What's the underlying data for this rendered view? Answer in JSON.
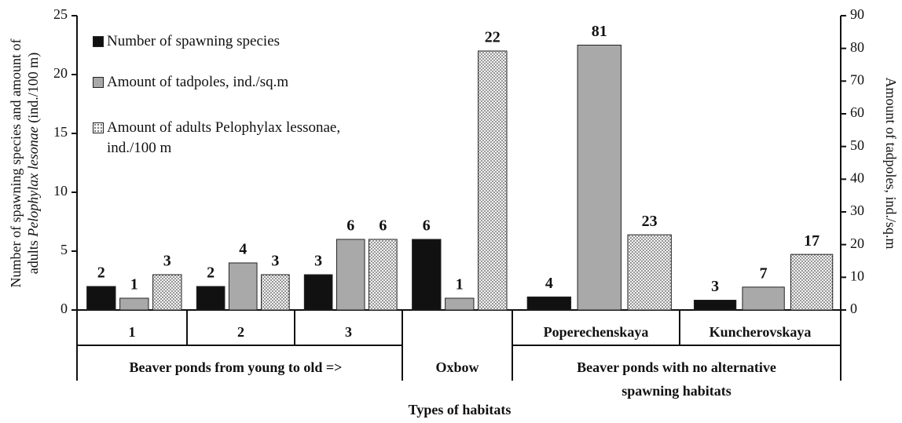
{
  "chart_data": {
    "type": "bar",
    "categories": [
      "1",
      "2",
      "3",
      null,
      "Poperechenskaya",
      "Kuncherovskaya"
    ],
    "category_axes": [
      "y",
      "y",
      "y",
      "y",
      "y2",
      "y2"
    ],
    "groups": [
      "Beaver ponds from young to old =>",
      "Oxbow",
      "Beaver ponds with no alternative spawning habitats"
    ],
    "series": [
      {
        "name": "Number of spawning species",
        "color": "#111111",
        "values": [
          2,
          2,
          3,
          6,
          4,
          3
        ]
      },
      {
        "name": "Amount of tadpoles, ind./sq.m",
        "color": "#a9a9a9",
        "values": [
          1,
          4,
          6,
          1,
          81,
          7
        ]
      },
      {
        "name": "Amount of adults Pelophylax lessonae, ind./100 m",
        "color": "#eeeeee",
        "pattern": "dots",
        "values": [
          3,
          3,
          6,
          22,
          23,
          17
        ]
      }
    ],
    "x_label": "Types of habitats",
    "y_label": [
      "Number of spawning species and amount of",
      "adults",
      "Pelophylax lesonae",
      "(ind./100 m)"
    ],
    "y2_label": "Amount of tadpoles, ind./sq.m",
    "ylim": [
      0,
      25
    ],
    "yticks": [
      0,
      5,
      10,
      15,
      20,
      25
    ],
    "y2lim": [
      0,
      90
    ],
    "y2ticks": [
      0,
      10,
      20,
      30,
      40,
      50,
      60,
      70,
      80,
      90
    ]
  }
}
